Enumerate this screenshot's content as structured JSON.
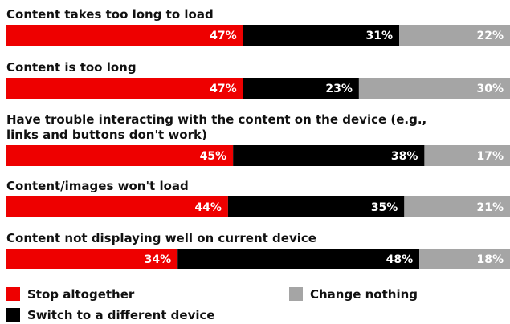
{
  "chart_data": {
    "type": "bar",
    "orientation": "horizontal",
    "stacked": true,
    "categories": [
      [
        "Content takes too long to load"
      ],
      [
        "Content is too long"
      ],
      [
        "Have trouble interacting with the content on the device (e.g.,",
        "links and buttons don't work)"
      ],
      [
        "Content/images won't load"
      ],
      [
        "Content not displaying well on current device"
      ]
    ],
    "series": [
      {
        "name": "Stop altogether",
        "color": "#ee0000",
        "values": [
          47,
          47,
          45,
          44,
          34
        ],
        "labels": [
          "47%",
          "47%",
          "45%",
          "44%",
          "34%"
        ]
      },
      {
        "name": "Switch to a different device",
        "color": "#000000",
        "values": [
          31,
          23,
          38,
          35,
          48
        ],
        "labels": [
          "31%",
          "23%",
          "38%",
          "35%",
          "48%"
        ]
      },
      {
        "name": "Change nothing",
        "color": "#a5a5a5",
        "values": [
          22,
          30,
          17,
          21,
          18
        ],
        "labels": [
          "22%",
          "30%",
          "17%",
          "21%",
          "18%"
        ]
      }
    ],
    "xlim": [
      0,
      100
    ],
    "grid": false,
    "legend": "bottom"
  }
}
